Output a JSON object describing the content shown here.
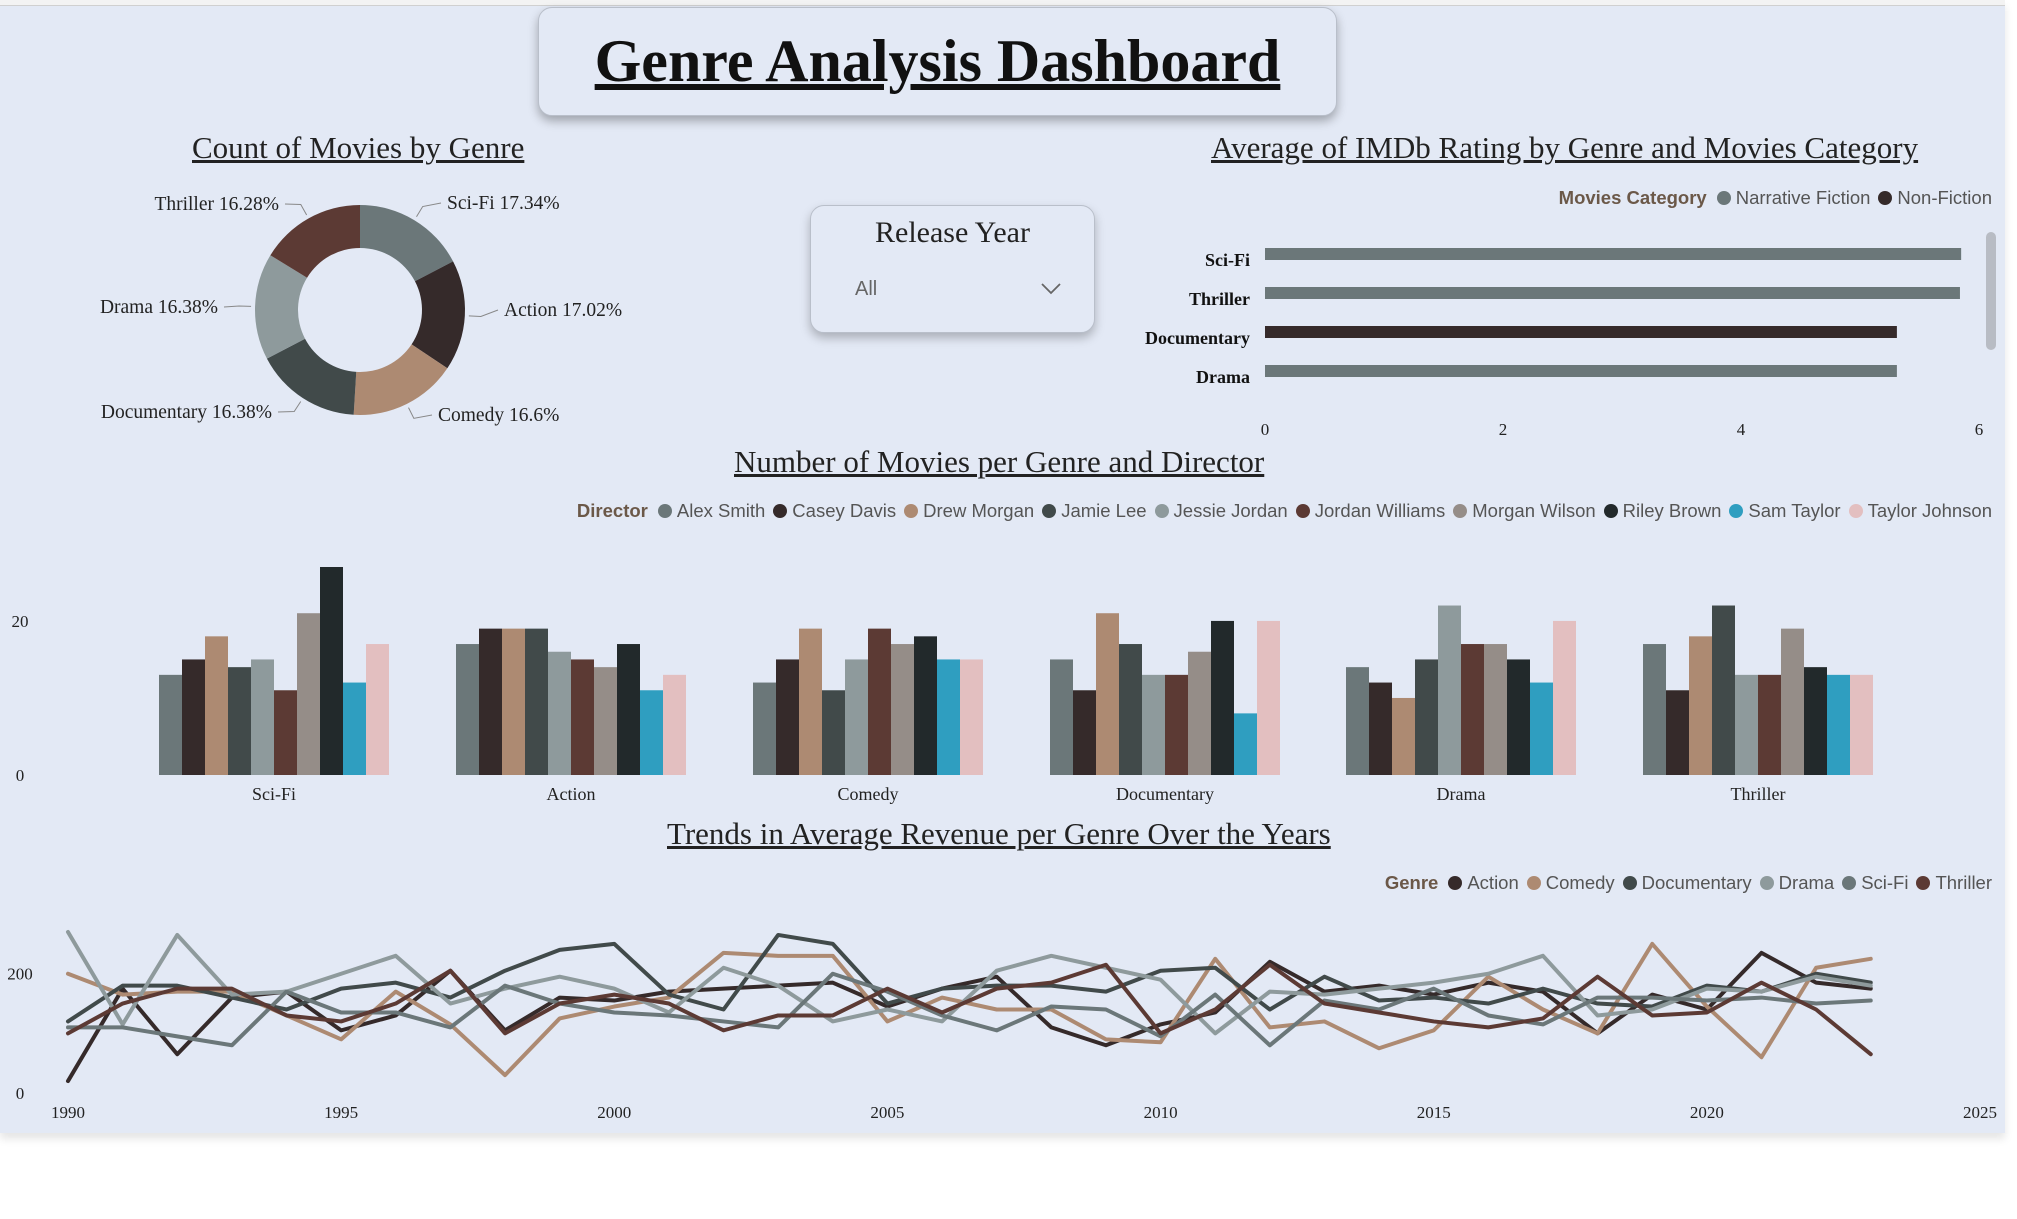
{
  "dashboard": {
    "title": "Genre Analysis Dashboard"
  },
  "slicer": {
    "label": "Release Year",
    "value": "All",
    "icon": "chevron-down-icon"
  },
  "colors": {
    "Alex Smith": "#6b7779",
    "Casey Davis": "#352a2a",
    "Drew Morgan": "#ad8a72",
    "Jamie Lee": "#414a4a",
    "Jessie Jordan": "#8e9a9c",
    "Jordan Williams": "#5c3a34",
    "Morgan Wilson": "#958d88",
    "Riley Brown": "#22292b",
    "Sam Taylor": "#2f9ec0",
    "Taylor Johnson": "#e3bfc0"
  },
  "donut": {
    "title": "Count of Movies by Genre",
    "chart_data": {
      "type": "pie",
      "variant": "donut",
      "slices": [
        {
          "label": "Sci-Fi 17.34%",
          "name": "Sci-Fi",
          "value": 17.34,
          "color": "#6b7779"
        },
        {
          "label": "Action 17.02%",
          "name": "Action",
          "value": 17.02,
          "color": "#352a2a"
        },
        {
          "label": "Comedy 16.6%",
          "name": "Comedy",
          "value": 16.6,
          "color": "#ad8a72"
        },
        {
          "label": "Documentary 16.38%",
          "name": "Documentary",
          "value": 16.38,
          "color": "#414a4a"
        },
        {
          "label": "Drama 16.38%",
          "name": "Drama",
          "value": 16.38,
          "color": "#8e9a9c"
        },
        {
          "label": "Thriller 16.28%",
          "name": "Thriller",
          "value": 16.28,
          "color": "#5c3a34"
        }
      ]
    }
  },
  "imdb": {
    "title": "Average of IMDb Rating by Genre and Movies Category",
    "legend": {
      "title": "Movies Category",
      "items": [
        {
          "name": "Narrative Fiction",
          "color": "#6b7779"
        },
        {
          "name": "Non-Fiction",
          "color": "#352a2a"
        }
      ]
    },
    "chart_data": {
      "type": "bar",
      "orientation": "horizontal",
      "categories": [
        "Sci-Fi",
        "Thriller",
        "Documentary",
        "Drama"
      ],
      "values": [
        5.85,
        5.84,
        5.31,
        5.31
      ],
      "series_of": [
        "Narrative Fiction",
        "Narrative Fiction",
        "Non-Fiction",
        "Narrative Fiction"
      ],
      "xlim": [
        0,
        6
      ],
      "xticks": [
        "0",
        "2",
        "4",
        "6"
      ]
    }
  },
  "directors": {
    "title": "Number of Movies per Genre and Director",
    "legend": {
      "title": "Director",
      "items": [
        "Alex Smith",
        "Casey Davis",
        "Drew Morgan",
        "Jamie Lee",
        "Jessie Jordan",
        "Jordan Williams",
        "Morgan Wilson",
        "Riley Brown",
        "Sam Taylor",
        "Taylor Johnson"
      ]
    },
    "chart_data": {
      "type": "bar",
      "categories": [
        "Sci-Fi",
        "Action",
        "Comedy",
        "Documentary",
        "Drama",
        "Thriller"
      ],
      "yticks": [
        "0",
        "20"
      ],
      "ylim": [
        0,
        27
      ],
      "series": [
        {
          "name": "Alex Smith",
          "values": [
            13,
            17,
            12,
            15,
            14,
            17
          ]
        },
        {
          "name": "Casey Davis",
          "values": [
            15,
            19,
            15,
            11,
            12,
            11
          ]
        },
        {
          "name": "Drew Morgan",
          "values": [
            18,
            19,
            19,
            21,
            10,
            18
          ]
        },
        {
          "name": "Jamie Lee",
          "values": [
            14,
            19,
            11,
            17,
            15,
            22
          ]
        },
        {
          "name": "Jessie Jordan",
          "values": [
            15,
            16,
            15,
            13,
            22,
            13
          ]
        },
        {
          "name": "Jordan Williams",
          "values": [
            11,
            15,
            19,
            13,
            17,
            13
          ]
        },
        {
          "name": "Morgan Wilson",
          "values": [
            21,
            14,
            17,
            16,
            17,
            19
          ]
        },
        {
          "name": "Riley Brown",
          "values": [
            27,
            17,
            18,
            20,
            15,
            14
          ]
        },
        {
          "name": "Sam Taylor",
          "values": [
            12,
            11,
            15,
            8,
            12,
            13
          ]
        },
        {
          "name": "Taylor Johnson",
          "values": [
            17,
            13,
            15,
            20,
            20,
            13
          ]
        }
      ]
    }
  },
  "revenue": {
    "title": "Trends in Average Revenue per Genre Over the Years",
    "legend": {
      "title": "Genre",
      "items": [
        {
          "name": "Action",
          "color": "#352a2a"
        },
        {
          "name": "Comedy",
          "color": "#ad8a72"
        },
        {
          "name": "Documentary",
          "color": "#414a4a"
        },
        {
          "name": "Drama",
          "color": "#8e9a9c"
        },
        {
          "name": "Sci-Fi",
          "color": "#6b7779"
        },
        {
          "name": "Thriller",
          "color": "#5c3a34"
        }
      ]
    },
    "chart_data": {
      "type": "line",
      "xlim": [
        1990,
        2025
      ],
      "ylim": [
        0,
        280
      ],
      "xticks": [
        "1990",
        "1995",
        "2000",
        "2005",
        "2010",
        "2015",
        "2020",
        "2025"
      ],
      "yticks": [
        "0",
        "200"
      ],
      "x": [
        1990,
        1991,
        1992,
        1993,
        1994,
        1995,
        1996,
        1997,
        1998,
        1999,
        2000,
        2001,
        2002,
        2003,
        2004,
        2005,
        2006,
        2007,
        2008,
        2009,
        2010,
        2011,
        2012,
        2013,
        2014,
        2015,
        2016,
        2017,
        2018,
        2019,
        2020,
        2021,
        2022,
        2023
      ],
      "series": [
        {
          "name": "Action",
          "values": [
            20,
            175,
            65,
            160,
            170,
            105,
            130,
            205,
            105,
            160,
            155,
            170,
            175,
            180,
            185,
            145,
            175,
            195,
            110,
            80,
            115,
            135,
            220,
            170,
            180,
            165,
            185,
            170,
            100,
            165,
            140,
            235,
            185,
            175
          ]
        },
        {
          "name": "Comedy",
          "values": [
            200,
            165,
            170,
            170,
            130,
            90,
            170,
            115,
            30,
            125,
            145,
            160,
            235,
            230,
            230,
            120,
            160,
            140,
            140,
            90,
            85,
            225,
            110,
            120,
            75,
            105,
            195,
            140,
            100,
            250,
            145,
            60,
            210,
            225
          ]
        },
        {
          "name": "Documentary",
          "values": [
            120,
            180,
            180,
            160,
            140,
            175,
            185,
            160,
            205,
            240,
            250,
            165,
            140,
            265,
            250,
            150,
            175,
            180,
            180,
            170,
            205,
            210,
            140,
            195,
            155,
            160,
            150,
            175,
            150,
            145,
            180,
            170,
            200,
            185
          ]
        },
        {
          "name": "Drama",
          "values": [
            270,
            115,
            265,
            165,
            170,
            200,
            230,
            150,
            175,
            195,
            175,
            135,
            210,
            180,
            120,
            140,
            120,
            205,
            230,
            210,
            190,
            100,
            170,
            165,
            175,
            185,
            200,
            230,
            130,
            140,
            175,
            170,
            195,
            180
          ]
        },
        {
          "name": "Sci-Fi",
          "values": [
            110,
            110,
            95,
            80,
            170,
            135,
            135,
            110,
            180,
            150,
            135,
            130,
            120,
            110,
            200,
            170,
            130,
            105,
            145,
            140,
            95,
            165,
            80,
            155,
            140,
            175,
            130,
            115,
            160,
            160,
            155,
            160,
            150,
            155
          ]
        },
        {
          "name": "Thriller",
          "values": [
            100,
            150,
            175,
            175,
            130,
            120,
            150,
            205,
            100,
            150,
            165,
            150,
            105,
            130,
            130,
            175,
            135,
            175,
            185,
            215,
            100,
            140,
            215,
            150,
            135,
            120,
            110,
            125,
            195,
            130,
            135,
            185,
            140,
            65
          ]
        }
      ]
    }
  }
}
